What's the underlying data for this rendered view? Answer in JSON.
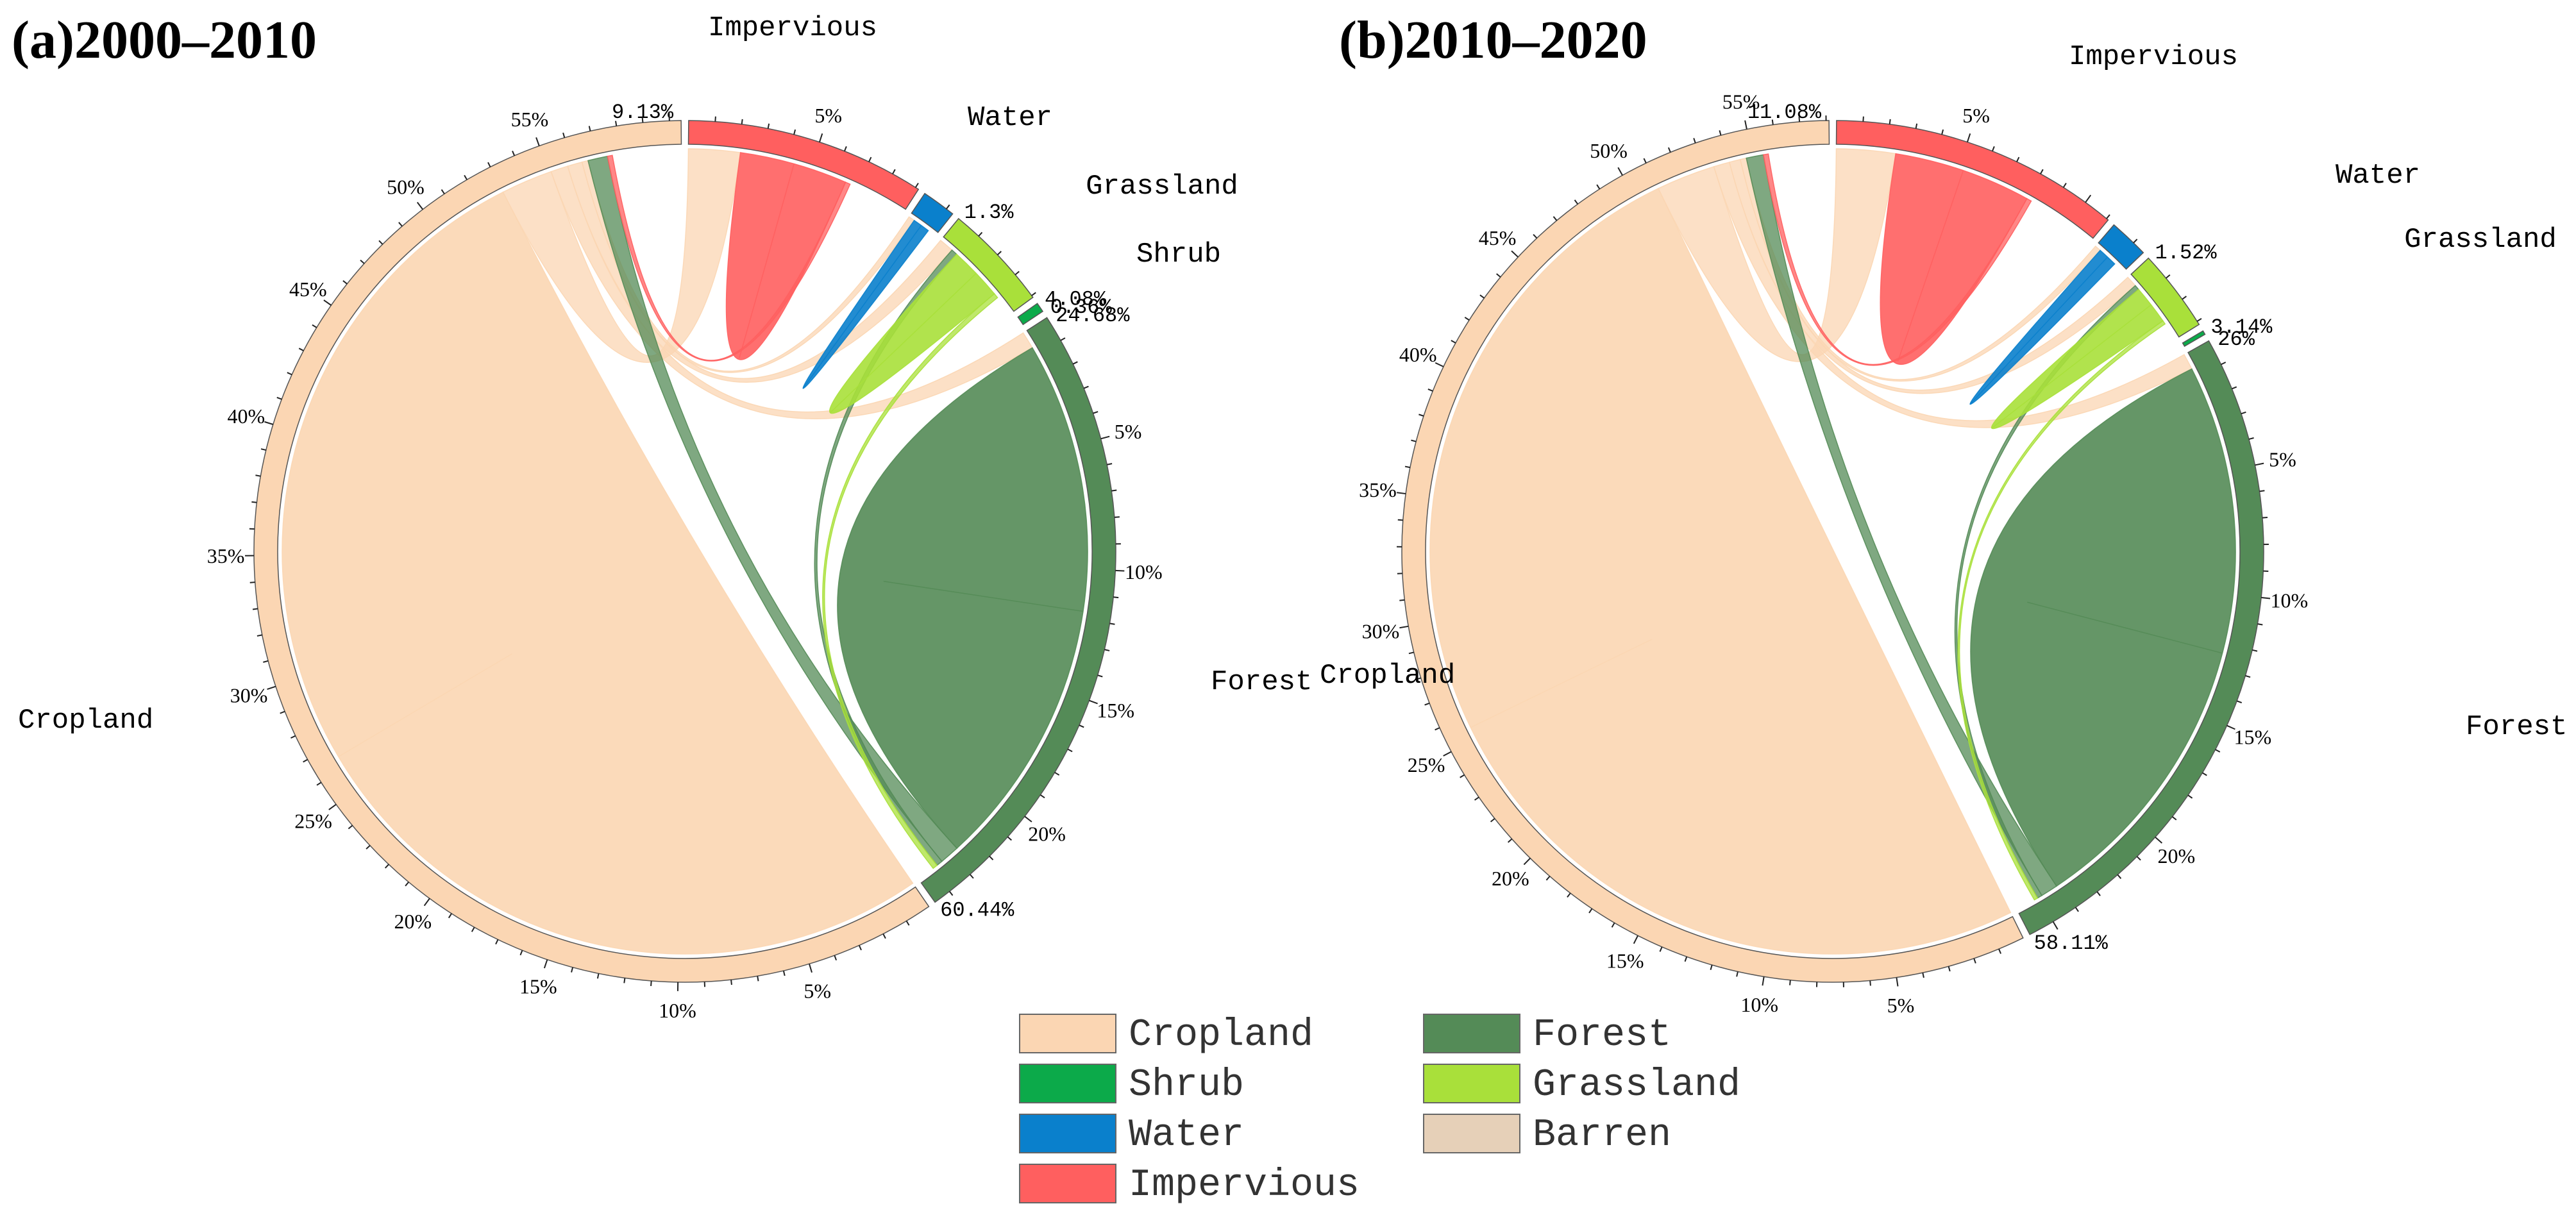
{
  "chart_data": [
    {
      "type": "chord",
      "title": "(a)2000–2010",
      "segments": [
        {
          "name": "Impervious",
          "share": 9.13,
          "value_label": "9.13%",
          "color": "#ff5f5f",
          "ticks": [
            "5%"
          ]
        },
        {
          "name": "Water",
          "share": 1.3,
          "value_label": "1.3%",
          "color": "#0a80cc"
        },
        {
          "name": "Grassland",
          "share": 4.08,
          "value_label": "4.08%",
          "color": "#a9e03a"
        },
        {
          "name": "Shrub",
          "share": 0.36,
          "value_label": "0.36%",
          "color": "#0caa4a"
        },
        {
          "name": "Forest",
          "share": 24.68,
          "value_label": "24.68%",
          "color": "#548b57",
          "ticks": [
            "5%",
            "10%",
            "15%",
            "20%"
          ]
        },
        {
          "name": "Cropland",
          "share": 60.44,
          "value_label": "60.44%",
          "color": "#fbd6b3",
          "ticks": [
            "5%",
            "10%",
            "15%",
            "20%",
            "25%",
            "30%",
            "35%",
            "40%",
            "45%",
            "50%",
            "55%"
          ]
        }
      ],
      "flows": [
        {
          "from": "Cropland",
          "to": "Cropland",
          "value": 53.0
        },
        {
          "from": "Cropland",
          "to": "Impervious",
          "value": 4.2
        },
        {
          "from": "Cropland",
          "to": "Forest",
          "value": 1.4
        },
        {
          "from": "Cropland",
          "to": "Grassland",
          "value": 1.2
        },
        {
          "from": "Cropland",
          "to": "Water",
          "value": 0.5
        },
        {
          "from": "Forest",
          "to": "Forest",
          "value": 22.0
        },
        {
          "from": "Forest",
          "to": "Cropland",
          "value": 1.6
        },
        {
          "from": "Forest",
          "to": "Grassland",
          "value": 0.5
        },
        {
          "from": "Impervious",
          "to": "Impervious",
          "value": 4.4
        },
        {
          "from": "Impervious",
          "to": "Cropland",
          "value": 0.4
        },
        {
          "from": "Grassland",
          "to": "Grassland",
          "value": 2.2
        },
        {
          "from": "Grassland",
          "to": "Forest",
          "value": 0.4
        },
        {
          "from": "Water",
          "to": "Water",
          "value": 0.7
        }
      ]
    },
    {
      "type": "chord",
      "title": "(b)2010–2020",
      "segments": [
        {
          "name": "Impervious",
          "share": 11.08,
          "value_label": "11.08%",
          "color": "#ff5f5f",
          "ticks": [
            "5%"
          ]
        },
        {
          "name": "Water",
          "share": 1.52,
          "value_label": "1.52%",
          "color": "#0a80cc"
        },
        {
          "name": "Grassland",
          "share": 3.14,
          "value_label": "3.14%",
          "color": "#a9e03a"
        },
        {
          "name": "Shrub",
          "share": 0.15,
          "value_label": "",
          "color": "#0caa4a"
        },
        {
          "name": "Forest",
          "share": 26.0,
          "value_label": "26%",
          "color": "#548b57",
          "ticks": [
            "5%",
            "10%",
            "15%",
            "20%"
          ]
        },
        {
          "name": "Cropland",
          "share": 58.11,
          "value_label": "58.11%",
          "color": "#fbd6b3",
          "ticks": [
            "5%",
            "10%",
            "15%",
            "20%",
            "25%",
            "30%",
            "35%",
            "40%",
            "45%",
            "50%",
            "55%"
          ]
        }
      ],
      "flows": [
        {
          "from": "Cropland",
          "to": "Cropland",
          "value": 51.0
        },
        {
          "from": "Cropland",
          "to": "Impervious",
          "value": 4.8
        },
        {
          "from": "Cropland",
          "to": "Forest",
          "value": 1.3
        },
        {
          "from": "Cropland",
          "to": "Grassland",
          "value": 0.9
        },
        {
          "from": "Cropland",
          "to": "Water",
          "value": 0.5
        },
        {
          "from": "Forest",
          "to": "Forest",
          "value": 23.5
        },
        {
          "from": "Forest",
          "to": "Cropland",
          "value": 1.4
        },
        {
          "from": "Forest",
          "to": "Grassland",
          "value": 0.4
        },
        {
          "from": "Impervious",
          "to": "Impervious",
          "value": 5.6
        },
        {
          "from": "Impervious",
          "to": "Cropland",
          "value": 0.4
        },
        {
          "from": "Grassland",
          "to": "Grassland",
          "value": 1.6
        },
        {
          "from": "Grassland",
          "to": "Forest",
          "value": 0.3
        },
        {
          "from": "Water",
          "to": "Water",
          "value": 0.8
        }
      ]
    }
  ],
  "legend": [
    {
      "label": "Cropland",
      "color": "#fbd6b3"
    },
    {
      "label": "Shrub",
      "color": "#0caa4a"
    },
    {
      "label": "Water",
      "color": "#0a80cc"
    },
    {
      "label": "Impervious",
      "color": "#ff5f5f"
    },
    {
      "label": "Forest",
      "color": "#548b57"
    },
    {
      "label": "Grassland",
      "color": "#a9e03a"
    },
    {
      "label": "Barren",
      "color": "#e6d0b8"
    }
  ]
}
